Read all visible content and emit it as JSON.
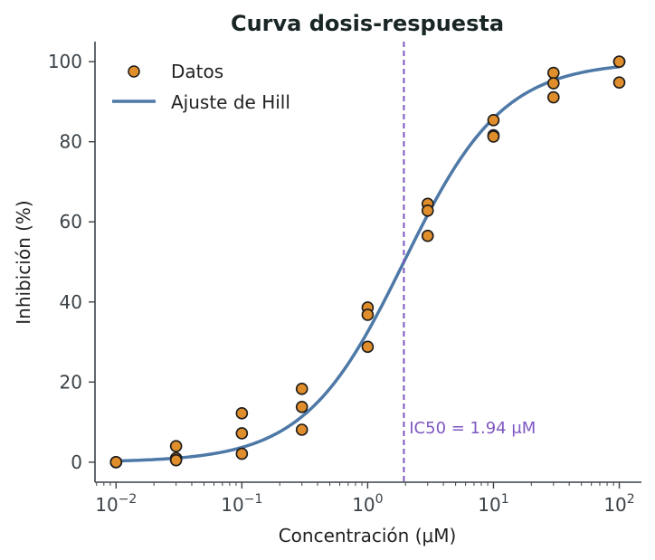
{
  "chart_data": {
    "type": "scatter",
    "title": "Curva dosis-respuesta",
    "xlabel": "Concentración (μM)",
    "ylabel": "Inhibición (%)",
    "xscale": "log",
    "xlim": [
      0.0068,
      150
    ],
    "ylim": [
      -5,
      105
    ],
    "xticks": [
      {
        "value": 0.01,
        "base": "10",
        "exp": "−2"
      },
      {
        "value": 0.1,
        "base": "10",
        "exp": "−1"
      },
      {
        "value": 1,
        "base": "10",
        "exp": "0"
      },
      {
        "value": 10,
        "base": "10",
        "exp": "1"
      },
      {
        "value": 100,
        "base": "10",
        "exp": "2"
      }
    ],
    "yticks": [
      {
        "value": 0,
        "label": "0"
      },
      {
        "value": 20,
        "label": "20"
      },
      {
        "value": 40,
        "label": "40"
      },
      {
        "value": 60,
        "label": "60"
      },
      {
        "value": 80,
        "label": "80"
      },
      {
        "value": 100,
        "label": "100"
      }
    ],
    "series": [
      {
        "name": "Datos",
        "kind": "scatter",
        "color": "#e08e2b",
        "edge_color": "#1a1a1a",
        "points": [
          {
            "x": 0.01,
            "y": 0.0
          },
          {
            "x": 0.01,
            "y": 0.0
          },
          {
            "x": 0.01,
            "y": 0.0
          },
          {
            "x": 0.03,
            "y": 4.0
          },
          {
            "x": 0.03,
            "y": 1.0
          },
          {
            "x": 0.03,
            "y": 0.5
          },
          {
            "x": 0.1,
            "y": 12.2
          },
          {
            "x": 0.1,
            "y": 7.2
          },
          {
            "x": 0.1,
            "y": 2.1
          },
          {
            "x": 0.3,
            "y": 18.3
          },
          {
            "x": 0.3,
            "y": 13.8
          },
          {
            "x": 0.3,
            "y": 8.1
          },
          {
            "x": 1,
            "y": 38.6
          },
          {
            "x": 1,
            "y": 36.8
          },
          {
            "x": 1,
            "y": 28.8
          },
          {
            "x": 3,
            "y": 64.5
          },
          {
            "x": 3,
            "y": 62.8
          },
          {
            "x": 3,
            "y": 56.5
          },
          {
            "x": 10,
            "y": 85.4
          },
          {
            "x": 10,
            "y": 81.6
          },
          {
            "x": 10,
            "y": 81.3
          },
          {
            "x": 30,
            "y": 97.2
          },
          {
            "x": 30,
            "y": 94.6
          },
          {
            "x": 30,
            "y": 91.1
          },
          {
            "x": 100,
            "y": 100.0
          },
          {
            "x": 100,
            "y": 100.0
          },
          {
            "x": 100,
            "y": 94.8
          }
        ]
      },
      {
        "name": "Ajuste de Hill",
        "kind": "line",
        "color": "#4e79a7",
        "bottom": 0,
        "top": 100,
        "ic50": 1.94,
        "hill": 1.1
      }
    ],
    "vline": {
      "x": 1.94,
      "color": "#7e57c2",
      "style": "dashed"
    },
    "annotation": {
      "text": "IC50 = 1.94 μM",
      "x": 2.0,
      "y": 8.5,
      "color": "#7e57c2"
    },
    "legend": {
      "position": "top-left"
    },
    "grid": false
  }
}
